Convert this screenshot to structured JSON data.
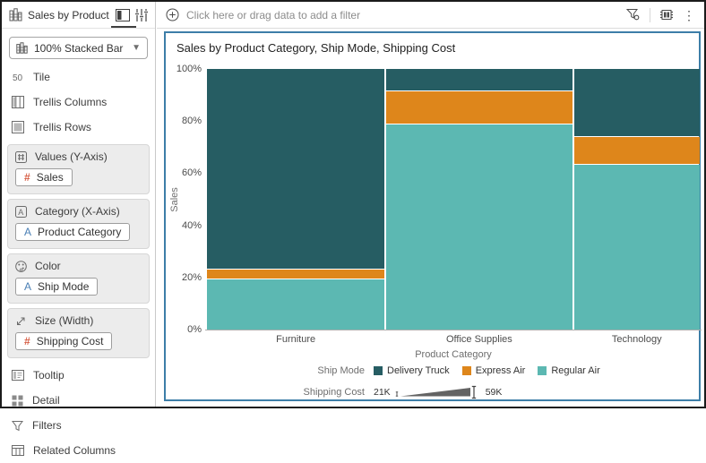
{
  "sidebar": {
    "title": "Sales by Product Ca...",
    "chart_type_selector": "100% Stacked Bar",
    "rows_top": [
      "Tile",
      "Trellis Columns",
      "Trellis Rows"
    ],
    "sections": [
      {
        "label": "Values (Y-Axis)",
        "chip_prefix": "#",
        "chip": "Sales"
      },
      {
        "label": "Category (X-Axis)",
        "chip_prefix": "A",
        "chip": "Product Category"
      },
      {
        "label": "Color",
        "chip_prefix": "A",
        "chip": "Ship Mode"
      },
      {
        "label": "Size (Width)",
        "chip_prefix": "#",
        "chip": "Shipping Cost"
      }
    ],
    "rows_bottom": [
      "Tooltip",
      "Detail",
      "Filters",
      "Related Columns"
    ]
  },
  "filter_bar": {
    "placeholder": "Click here or drag data to add a filter"
  },
  "icons": {
    "header_left": "stacked-bar-viz-icon",
    "header_right": [
      "grammar-panel-icon",
      "properties-sliders-icon"
    ],
    "filter_bar_left": "add-filter-icon",
    "filter_bar_right": [
      "filter-funnel-icon",
      "canvas-grid-icon",
      "kebab-menu-icon"
    ]
  },
  "chart_data": {
    "type": "bar",
    "variant": "100% stacked bar with variable bar width (marimekko)",
    "title": "Sales by Product Category, Ship Mode, Shipping Cost",
    "categories": [
      "Furniture",
      "Office Supplies",
      "Technology"
    ],
    "series": [
      {
        "name": "Delivery Truck",
        "color": "#265d63",
        "values": [
          77.2,
          8.3,
          26.1
        ]
      },
      {
        "name": "Express Air",
        "color": "#de861b",
        "values": [
          3.5,
          12.4,
          10.1
        ]
      },
      {
        "name": "Regular Air",
        "color": "#5cb8b2",
        "values": [
          19.3,
          79.3,
          63.8
        ]
      }
    ],
    "bar_width_weights": [
      199,
      208,
      141
    ],
    "xlabel": "Product Category",
    "ylabel": "Sales",
    "yticks": [
      "100%",
      "80%",
      "60%",
      "40%",
      "20%",
      "0%"
    ],
    "ylim": [
      0,
      100
    ],
    "grid": false,
    "legend": {
      "position": "bottom",
      "color_label": "Ship Mode",
      "size_label": "Shipping Cost",
      "size_min": "21K",
      "size_max": "59K"
    }
  }
}
